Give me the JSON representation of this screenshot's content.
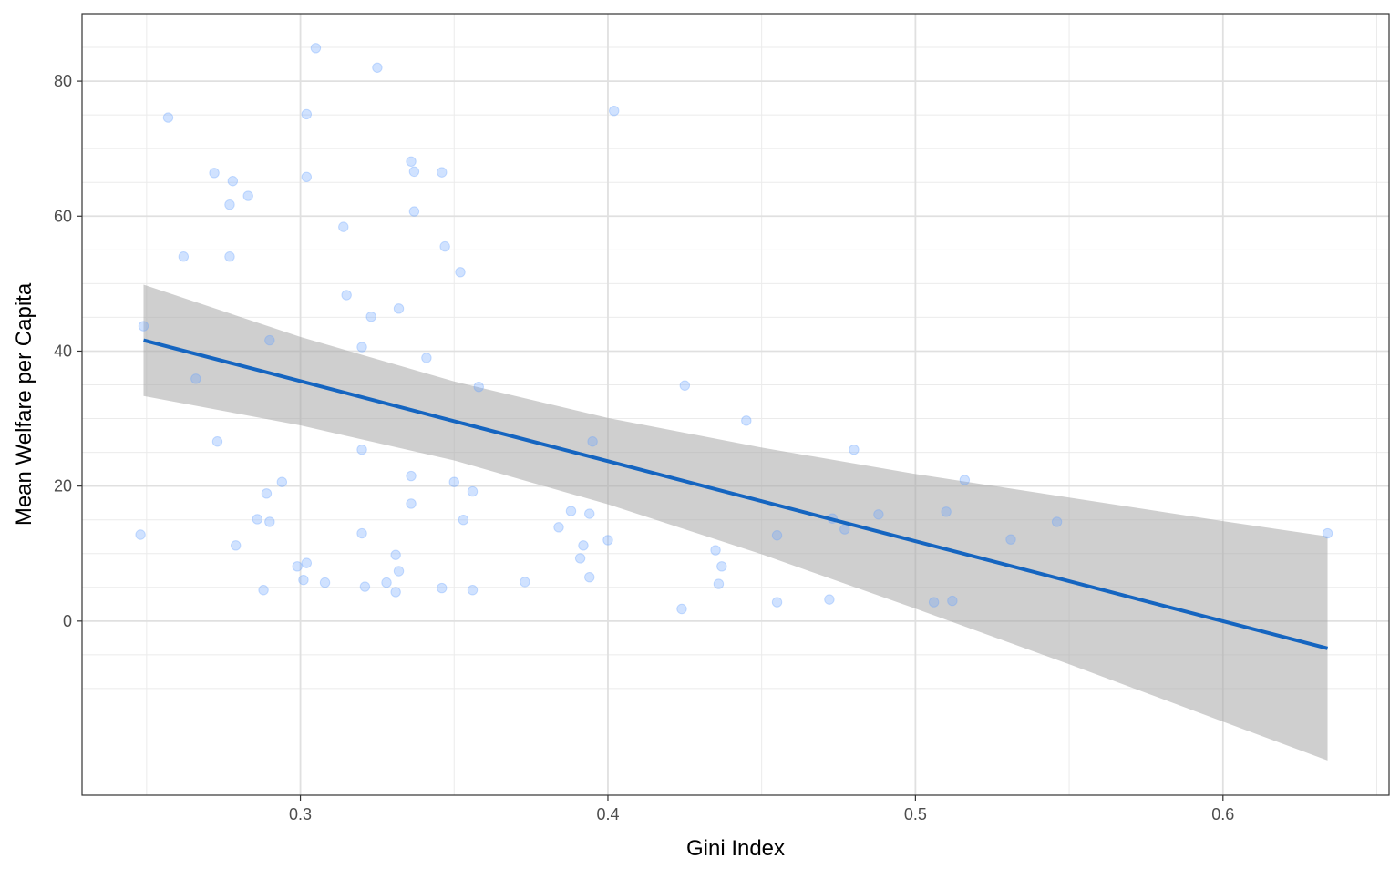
{
  "chart_data": {
    "type": "scatter",
    "title": "",
    "xlabel": "Gini Index",
    "ylabel": "Mean Welfare per Capita",
    "xlim": [
      0.229,
      0.654
    ],
    "ylim": [
      -25.8,
      90.0
    ],
    "xticks": [
      0.3,
      0.4,
      0.5,
      0.6
    ],
    "xtick_labels": [
      "0.3",
      "0.4",
      "0.5",
      "0.6"
    ],
    "yticks": [
      0,
      20,
      40,
      60,
      80
    ],
    "ytick_labels": [
      "0",
      "20",
      "40",
      "60",
      "80"
    ],
    "grid": true,
    "legend": "none",
    "colors": {
      "points": "#64a0ff",
      "fit_line": "#1565c0",
      "ci_band": "#bdbdbd"
    },
    "points": [
      [
        0.248,
        12.8
      ],
      [
        0.249,
        43.7
      ],
      [
        0.257,
        74.6
      ],
      [
        0.262,
        54.0
      ],
      [
        0.266,
        35.9
      ],
      [
        0.272,
        66.4
      ],
      [
        0.273,
        26.6
      ],
      [
        0.277,
        61.7
      ],
      [
        0.277,
        54.0
      ],
      [
        0.278,
        65.2
      ],
      [
        0.279,
        11.2
      ],
      [
        0.283,
        63.0
      ],
      [
        0.286,
        15.1
      ],
      [
        0.288,
        4.6
      ],
      [
        0.289,
        18.9
      ],
      [
        0.29,
        41.6
      ],
      [
        0.29,
        14.7
      ],
      [
        0.294,
        20.6
      ],
      [
        0.299,
        8.1
      ],
      [
        0.301,
        6.1
      ],
      [
        0.302,
        8.6
      ],
      [
        0.302,
        65.8
      ],
      [
        0.302,
        75.1
      ],
      [
        0.305,
        84.9
      ],
      [
        0.308,
        5.7
      ],
      [
        0.314,
        58.4
      ],
      [
        0.315,
        48.3
      ],
      [
        0.32,
        40.6
      ],
      [
        0.32,
        25.4
      ],
      [
        0.32,
        13.0
      ],
      [
        0.321,
        5.1
      ],
      [
        0.323,
        45.1
      ],
      [
        0.325,
        82.0
      ],
      [
        0.328,
        5.7
      ],
      [
        0.331,
        9.8
      ],
      [
        0.331,
        4.3
      ],
      [
        0.332,
        46.3
      ],
      [
        0.332,
        7.4
      ],
      [
        0.336,
        68.1
      ],
      [
        0.336,
        21.5
      ],
      [
        0.336,
        17.4
      ],
      [
        0.337,
        66.6
      ],
      [
        0.337,
        60.7
      ],
      [
        0.341,
        39.0
      ],
      [
        0.346,
        4.9
      ],
      [
        0.346,
        66.5
      ],
      [
        0.347,
        55.5
      ],
      [
        0.35,
        20.6
      ],
      [
        0.352,
        51.7
      ],
      [
        0.353,
        15.0
      ],
      [
        0.356,
        19.2
      ],
      [
        0.356,
        4.6
      ],
      [
        0.358,
        34.7
      ],
      [
        0.373,
        5.8
      ],
      [
        0.384,
        13.9
      ],
      [
        0.388,
        16.3
      ],
      [
        0.391,
        9.3
      ],
      [
        0.392,
        11.2
      ],
      [
        0.394,
        15.9
      ],
      [
        0.394,
        6.5
      ],
      [
        0.395,
        26.6
      ],
      [
        0.4,
        12.0
      ],
      [
        0.402,
        75.6
      ],
      [
        0.424,
        1.8
      ],
      [
        0.425,
        34.9
      ],
      [
        0.435,
        10.5
      ],
      [
        0.436,
        5.5
      ],
      [
        0.437,
        8.1
      ],
      [
        0.445,
        29.7
      ],
      [
        0.455,
        2.8
      ],
      [
        0.455,
        12.7
      ],
      [
        0.472,
        3.2
      ],
      [
        0.473,
        15.2
      ],
      [
        0.477,
        13.6
      ],
      [
        0.48,
        25.4
      ],
      [
        0.488,
        15.8
      ],
      [
        0.506,
        2.8
      ],
      [
        0.51,
        16.2
      ],
      [
        0.512,
        3.0
      ],
      [
        0.516,
        20.9
      ],
      [
        0.531,
        12.1
      ],
      [
        0.546,
        14.7
      ],
      [
        0.634,
        13.0
      ]
    ],
    "fit_line": {
      "x": [
        0.249,
        0.634
      ],
      "y": [
        41.6,
        -4.05
      ]
    },
    "ci_band": {
      "x": [
        0.249,
        0.3,
        0.35,
        0.4,
        0.45,
        0.5,
        0.55,
        0.6,
        0.634
      ],
      "lower": [
        33.35,
        29.0,
        23.8,
        17.3,
        9.9,
        1.85,
        -6.4,
        -14.9,
        -20.65
      ],
      "upper": [
        49.85,
        42.1,
        35.5,
        30.1,
        25.7,
        21.8,
        18.3,
        14.8,
        12.55
      ]
    }
  }
}
